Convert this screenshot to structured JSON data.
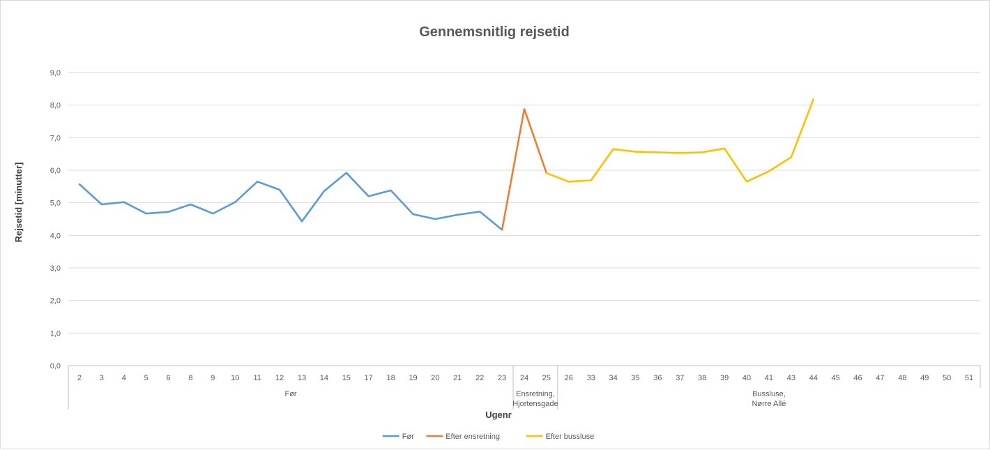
{
  "chart_data": {
    "type": "line",
    "title": "Gennemsnitlig rejsetid",
    "xlabel": "Ugenr",
    "ylabel": "Rejsetid [minutter]",
    "ylim": [
      0,
      9
    ],
    "y_ticks": [
      "0,0",
      "1,0",
      "2,0",
      "3,0",
      "4,0",
      "5,0",
      "6,0",
      "7,0",
      "8,0",
      "9,0"
    ],
    "grid": true,
    "legend_position": "bottom",
    "categories": [
      "2",
      "3",
      "4",
      "5",
      "6",
      "8",
      "9",
      "10",
      "11",
      "12",
      "13",
      "14",
      "15",
      "17",
      "18",
      "19",
      "20",
      "21",
      "22",
      "23",
      "24",
      "25",
      "26",
      "33",
      "34",
      "35",
      "36",
      "37",
      "38",
      "39",
      "40",
      "41",
      "43",
      "44",
      "45",
      "46",
      "47",
      "48",
      "49",
      "50",
      "51"
    ],
    "groups": [
      {
        "label": [
          "Før"
        ],
        "start": 0,
        "end": 19
      },
      {
        "label": [
          "Ensretning,",
          "Hjortensgade"
        ],
        "start": 20,
        "end": 21
      },
      {
        "label": [
          "Bussluse,",
          "Nørre Allé"
        ],
        "start": 22,
        "end": 40
      }
    ],
    "series": [
      {
        "name": "Før",
        "color": "#5b9bd5",
        "points": [
          [
            0,
            5.57
          ],
          [
            1,
            4.95
          ],
          [
            2,
            5.02
          ],
          [
            3,
            4.67
          ],
          [
            4,
            4.72
          ],
          [
            5,
            4.95
          ],
          [
            6,
            4.67
          ],
          [
            7,
            5.02
          ],
          [
            8,
            5.65
          ],
          [
            9,
            5.4
          ],
          [
            10,
            4.43
          ],
          [
            11,
            5.36
          ],
          [
            12,
            5.92
          ],
          [
            13,
            5.2
          ],
          [
            14,
            5.38
          ],
          [
            15,
            4.65
          ],
          [
            16,
            4.5
          ],
          [
            17,
            4.63
          ],
          [
            18,
            4.73
          ],
          [
            19,
            4.17
          ]
        ]
      },
      {
        "name": "Efter ensretning",
        "color": "#ed7d31",
        "points": [
          [
            19,
            4.17
          ],
          [
            20,
            7.88
          ],
          [
            21,
            5.91
          ]
        ]
      },
      {
        "name": "Efter bussluse",
        "color": "#ffc000",
        "points": [
          [
            21,
            5.91
          ],
          [
            22,
            5.65
          ],
          [
            23,
            5.69
          ],
          [
            24,
            6.65
          ],
          [
            25,
            6.57
          ],
          [
            26,
            6.55
          ],
          [
            27,
            6.53
          ],
          [
            28,
            6.55
          ],
          [
            29,
            6.67
          ],
          [
            30,
            5.65
          ],
          [
            31,
            5.97
          ],
          [
            32,
            6.4
          ],
          [
            33,
            8.18
          ]
        ]
      }
    ]
  }
}
